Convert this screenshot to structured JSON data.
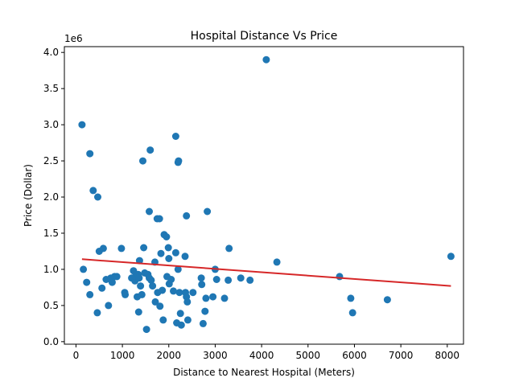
{
  "chart_data": {
    "type": "scatter",
    "title": "Hospital Distance Vs Price",
    "xlabel": "Distance to Nearest Hospital (Meters)",
    "ylabel": "Price (Dollar)",
    "y_offset_label": "1e6",
    "xlim": [
      -250,
      8350
    ],
    "ylim": [
      -0.035,
      4.08
    ],
    "x_ticks": [
      0,
      1000,
      2000,
      3000,
      4000,
      5000,
      6000,
      7000,
      8000
    ],
    "x_tick_labels": [
      "0",
      "1000",
      "2000",
      "3000",
      "4000",
      "5000",
      "6000",
      "7000",
      "8000"
    ],
    "y_ticks": [
      0.0,
      0.5,
      1.0,
      1.5,
      2.0,
      2.5,
      3.0,
      3.5,
      4.0
    ],
    "y_tick_labels": [
      "0.0",
      "0.5",
      "1.0",
      "1.5",
      "2.0",
      "2.5",
      "3.0",
      "3.5",
      "4.0"
    ],
    "grid": false,
    "scatter_color": "#1f77b4",
    "trend_color": "#d62728",
    "trend_line": {
      "x": [
        130,
        8080
      ],
      "y": [
        1.14,
        0.77
      ]
    },
    "points": [
      [
        130,
        3.0
      ],
      [
        300,
        2.6
      ],
      [
        370,
        2.09
      ],
      [
        470,
        2.0
      ],
      [
        4100,
        3.9
      ],
      [
        1600,
        2.65
      ],
      [
        2150,
        2.84
      ],
      [
        1440,
        2.5
      ],
      [
        2200,
        2.48
      ],
      [
        2210,
        2.5
      ],
      [
        1580,
        1.8
      ],
      [
        1750,
        1.7
      ],
      [
        1800,
        1.7
      ],
      [
        2380,
        1.74
      ],
      [
        2830,
        1.8
      ],
      [
        1900,
        1.48
      ],
      [
        1950,
        1.45
      ],
      [
        160,
        1.0
      ],
      [
        230,
        0.82
      ],
      [
        300,
        0.65
      ],
      [
        460,
        0.4
      ],
      [
        500,
        1.25
      ],
      [
        560,
        0.74
      ],
      [
        590,
        1.29
      ],
      [
        650,
        0.86
      ],
      [
        700,
        0.5
      ],
      [
        750,
        0.88
      ],
      [
        780,
        0.82
      ],
      [
        830,
        0.9
      ],
      [
        880,
        0.9
      ],
      [
        980,
        1.29
      ],
      [
        1050,
        0.68
      ],
      [
        1060,
        0.65
      ],
      [
        1200,
        0.88
      ],
      [
        1240,
        0.98
      ],
      [
        1270,
        0.84
      ],
      [
        1280,
        0.9
      ],
      [
        1320,
        0.62
      ],
      [
        1340,
        0.93
      ],
      [
        1350,
        0.41
      ],
      [
        1360,
        0.88
      ],
      [
        1370,
        1.12
      ],
      [
        1390,
        0.77
      ],
      [
        1420,
        0.65
      ],
      [
        1460,
        1.3
      ],
      [
        1480,
        0.95
      ],
      [
        1520,
        0.17
      ],
      [
        1550,
        0.93
      ],
      [
        1580,
        0.88
      ],
      [
        1620,
        0.85
      ],
      [
        1650,
        0.77
      ],
      [
        1700,
        1.1
      ],
      [
        1710,
        0.55
      ],
      [
        1760,
        0.68
      ],
      [
        1810,
        0.49
      ],
      [
        1830,
        1.22
      ],
      [
        1860,
        0.71
      ],
      [
        1880,
        0.3
      ],
      [
        1960,
        0.9
      ],
      [
        1990,
        1.3
      ],
      [
        2000,
        1.15
      ],
      [
        2010,
        0.8
      ],
      [
        2050,
        0.86
      ],
      [
        2100,
        0.7
      ],
      [
        2150,
        1.23
      ],
      [
        2170,
        0.26
      ],
      [
        2200,
        1.0
      ],
      [
        2230,
        0.68
      ],
      [
        2250,
        0.39
      ],
      [
        2270,
        0.23
      ],
      [
        2350,
        1.18
      ],
      [
        2360,
        0.68
      ],
      [
        2380,
        0.62
      ],
      [
        2400,
        0.55
      ],
      [
        2410,
        0.3
      ],
      [
        2520,
        0.68
      ],
      [
        2700,
        0.88
      ],
      [
        2710,
        0.79
      ],
      [
        2740,
        0.25
      ],
      [
        2780,
        0.42
      ],
      [
        2800,
        0.6
      ],
      [
        2950,
        0.62
      ],
      [
        3000,
        1.0
      ],
      [
        3030,
        0.86
      ],
      [
        3200,
        0.6
      ],
      [
        3280,
        0.85
      ],
      [
        3300,
        1.29
      ],
      [
        3550,
        0.88
      ],
      [
        3750,
        0.85
      ],
      [
        4330,
        1.1
      ],
      [
        5680,
        0.9
      ],
      [
        5920,
        0.6
      ],
      [
        5960,
        0.4
      ],
      [
        6710,
        0.58
      ],
      [
        8080,
        1.18
      ]
    ]
  }
}
